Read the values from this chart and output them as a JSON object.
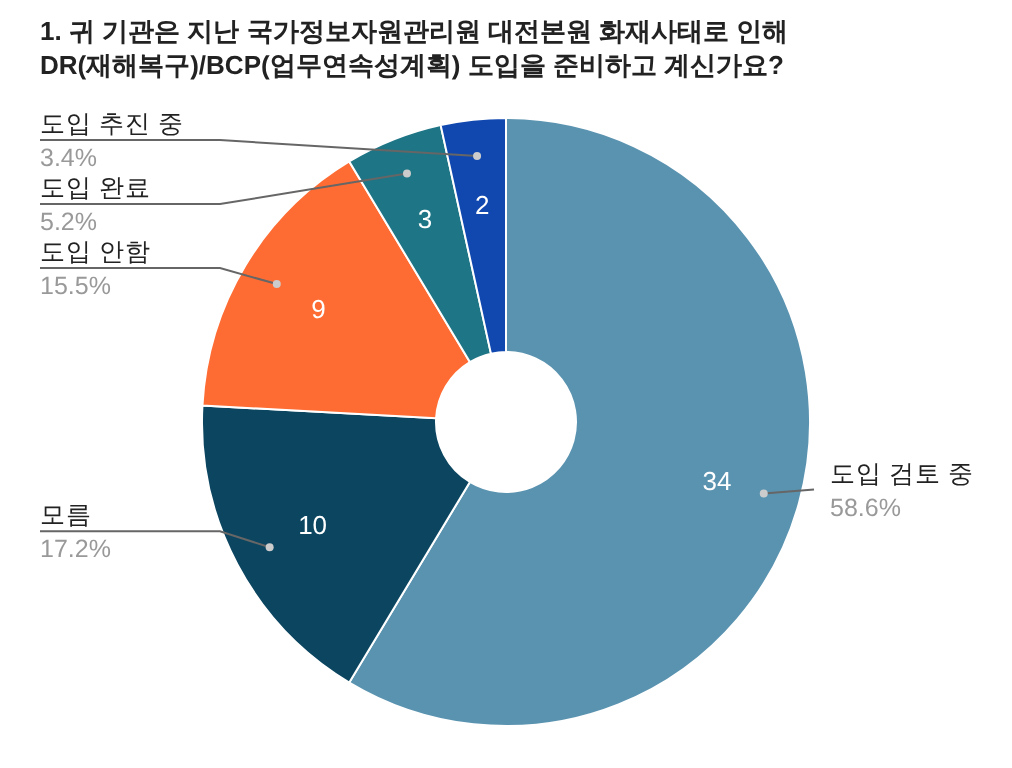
{
  "chart_data": {
    "type": "donut",
    "title": "1. 귀 기관은 지난 국가정보자원관리원 대전본원 화재사태로 인해\nDR(재해복구)/BCP(업무연속성계획) 도입을 준비하고 계신가요?",
    "categories": [
      "도입 검토 중",
      "모름",
      "도입 안함",
      "도입 완료",
      "도입 추진 중"
    ],
    "values": [
      34,
      10,
      9,
      3,
      2
    ],
    "colors": [
      "#5a93b0",
      "#0b4560",
      "#ff6c33",
      "#1e7585",
      "#1148b0"
    ],
    "data_labels": true,
    "annotations": [
      {
        "text": "58.6%",
        "x": "도입 검토 중"
      },
      {
        "text": "17.2%",
        "x": "모름"
      },
      {
        "text": "15.5%",
        "x": "도입 안함"
      },
      {
        "text": "5.2%",
        "x": "도입 완료"
      },
      {
        "text": "3.4%",
        "x": "도입 추진 중"
      }
    ]
  }
}
